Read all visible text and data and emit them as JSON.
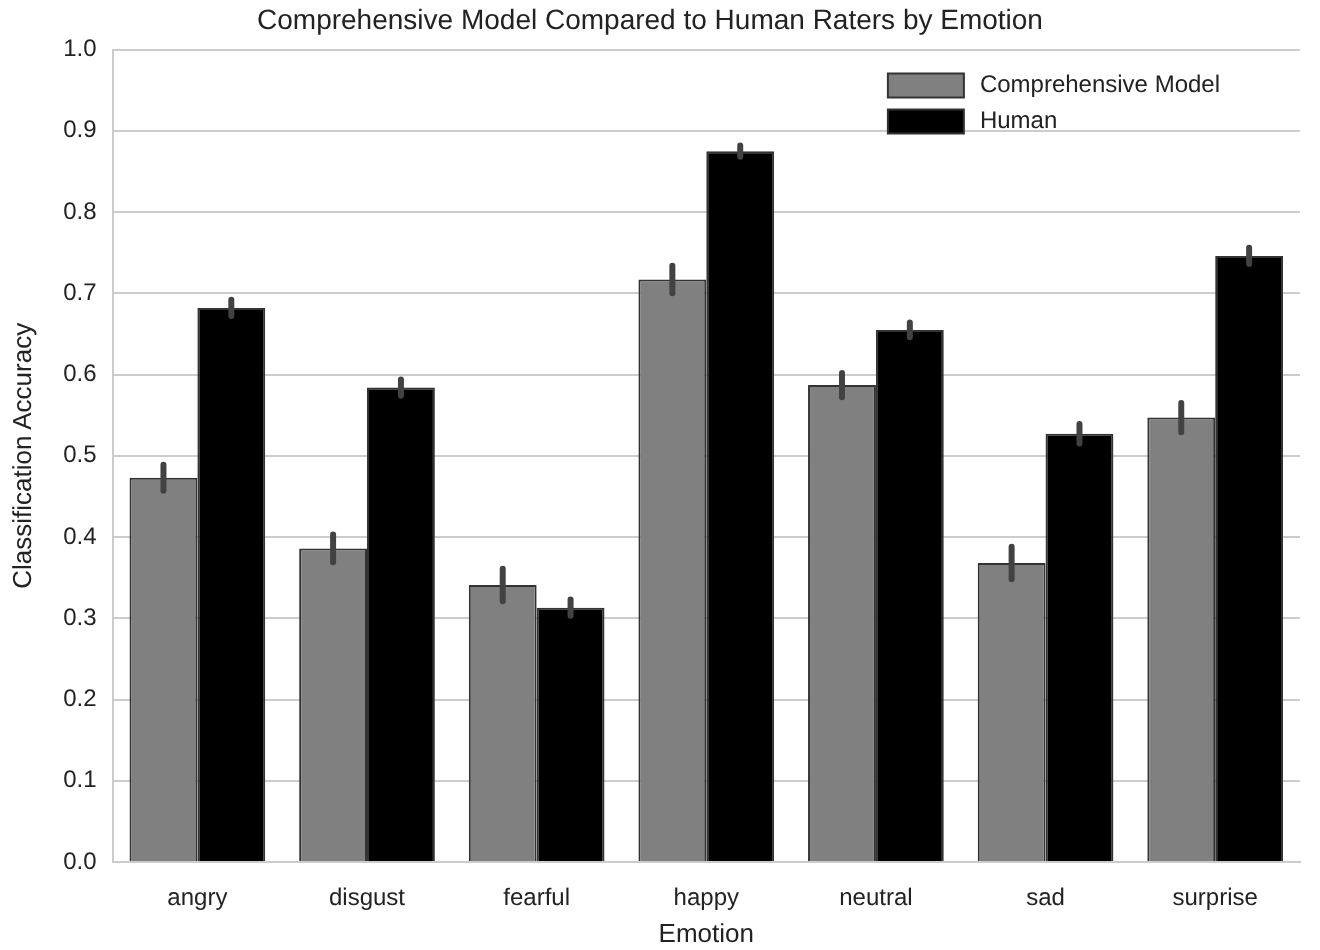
{
  "chart_data": {
    "type": "bar",
    "title": "Comprehensive Model Compared to Human Raters by Emotion",
    "xlabel": "Emotion",
    "ylabel": "Classification Accuracy",
    "categories": [
      "angry",
      "disgust",
      "fearful",
      "happy",
      "neutral",
      "sad",
      "surprise"
    ],
    "series": [
      {
        "name": "Comprehensive Model",
        "color": "#808080",
        "values": [
          0.473,
          0.386,
          0.341,
          0.717,
          0.587,
          0.368,
          0.547
        ],
        "errors": [
          0.016,
          0.017,
          0.02,
          0.017,
          0.015,
          0.02,
          0.018
        ]
      },
      {
        "name": "Human",
        "color": "#000000",
        "values": [
          0.682,
          0.584,
          0.313,
          0.875,
          0.655,
          0.527,
          0.746
        ],
        "errors": [
          0.01,
          0.01,
          0.01,
          0.007,
          0.009,
          0.012,
          0.01
        ]
      }
    ],
    "ylim": [
      0,
      1
    ],
    "yticks": [
      {
        "value": 0,
        "label": "0.0"
      },
      0.1,
      0.2,
      0.3,
      0.4,
      0.5,
      0.6,
      0.7,
      0.8,
      0.9,
      {
        "value": 1,
        "label": "1.0"
      }
    ],
    "grid": "y",
    "legend": "top right"
  }
}
